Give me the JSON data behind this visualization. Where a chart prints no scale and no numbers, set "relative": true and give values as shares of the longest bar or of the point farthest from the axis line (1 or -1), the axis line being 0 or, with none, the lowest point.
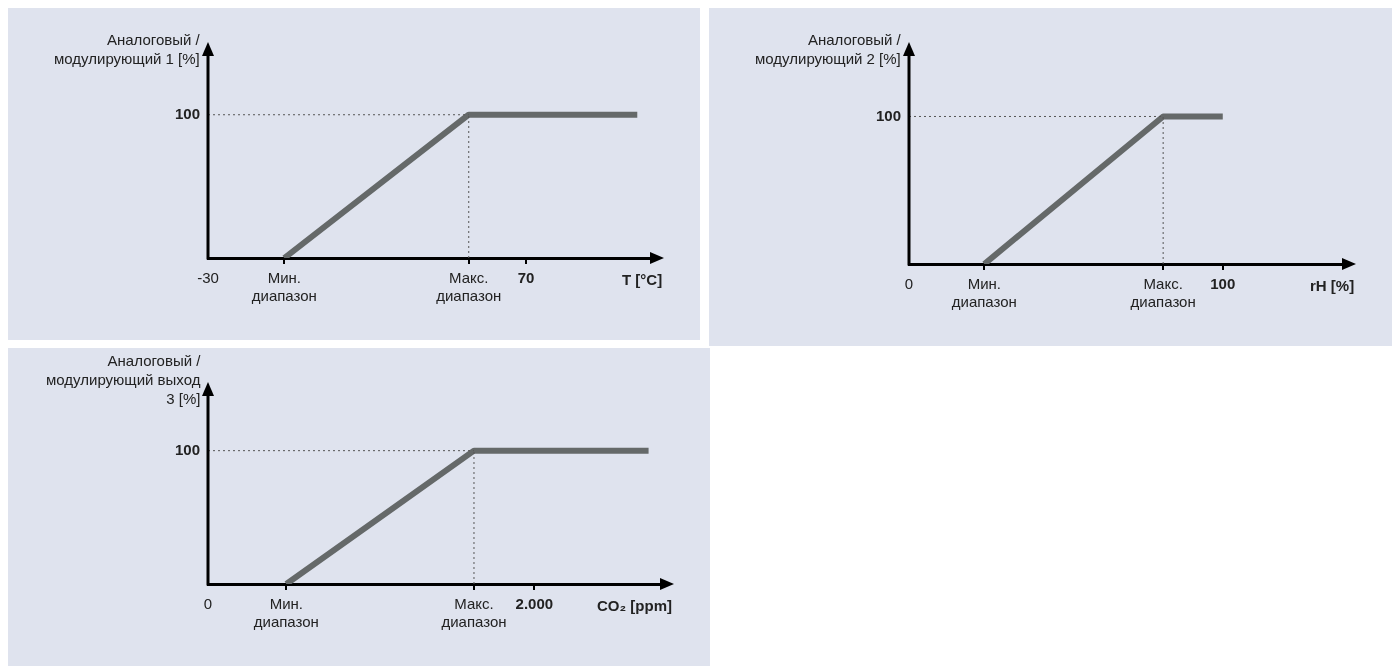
{
  "chart_data": [
    {
      "type": "line",
      "ylabel": "Аналоговый /\nмодулирующий 1 [%]",
      "xlabel": "T [°C]",
      "relative": true,
      "xlim": [
        -30,
        109
      ],
      "xticks": [
        -30,
        {
          "value": -6,
          "label": "Мин.\nдиапазон"
        },
        {
          "value": 52,
          "label": "Макс.\nдиапазон"
        },
        70
      ],
      "annotations": [
        "100"
      ],
      "series": [
        {
          "color": "#656969",
          "x": [
            -6,
            52,
            105
          ],
          "values": [
            0,
            1,
            1
          ]
        }
      ],
      "ref_lines": [
        {
          "axis": "y",
          "value": 1,
          "color": "#555555",
          "line_style": "dotted"
        },
        {
          "axis": "x",
          "value": 52,
          "color": "#555555",
          "line_style": "dotted"
        }
      ],
      "marker": "none",
      "line_style": "solid",
      "grid": false,
      "legend": false
    },
    {
      "type": "line",
      "ylabel": "Аналоговый /\nмодулирующий 2 [%]",
      "xlabel": "rH [%]",
      "relative": true,
      "xlim": [
        0,
        138
      ],
      "xticks": [
        0,
        {
          "value": 24,
          "label": "Мин.\nдиапазон"
        },
        {
          "value": 81,
          "label": "Макс.\nдиапазон"
        },
        100
      ],
      "annotations": [
        "100"
      ],
      "series": [
        {
          "color": "#656969",
          "x": [
            24,
            81,
            100
          ],
          "values": [
            0,
            1,
            1
          ]
        }
      ],
      "ref_lines": [
        {
          "axis": "y",
          "value": 1,
          "color": "#555555",
          "line_style": "dotted"
        },
        {
          "axis": "x",
          "value": 81,
          "color": "#555555",
          "line_style": "dotted"
        }
      ],
      "marker": "none",
      "line_style": "solid",
      "grid": false,
      "legend": false
    },
    {
      "type": "line",
      "ylabel": "Аналоговый /\nмодулирующий выход\n3 [%]",
      "xlabel": "CO₂ [ppm]",
      "relative": true,
      "xlim": [
        0,
        2770
      ],
      "xticks": [
        0,
        {
          "value": 480,
          "label": "Мин.\nдиапазон"
        },
        {
          "value": 1630,
          "label": "Макс.\nдиапазон"
        },
        {
          "value": 2000,
          "label": "2.000"
        }
      ],
      "annotations": [
        "100"
      ],
      "series": [
        {
          "color": "#656969",
          "x": [
            480,
            1630,
            2700
          ],
          "values": [
            0,
            1,
            1
          ]
        }
      ],
      "ref_lines": [
        {
          "axis": "y",
          "value": 1,
          "color": "#555555",
          "line_style": "dotted"
        },
        {
          "axis": "x",
          "value": 1630,
          "color": "#555555",
          "line_style": "dotted"
        }
      ],
      "marker": "none",
      "line_style": "solid",
      "grid": false,
      "legend": false
    }
  ]
}
